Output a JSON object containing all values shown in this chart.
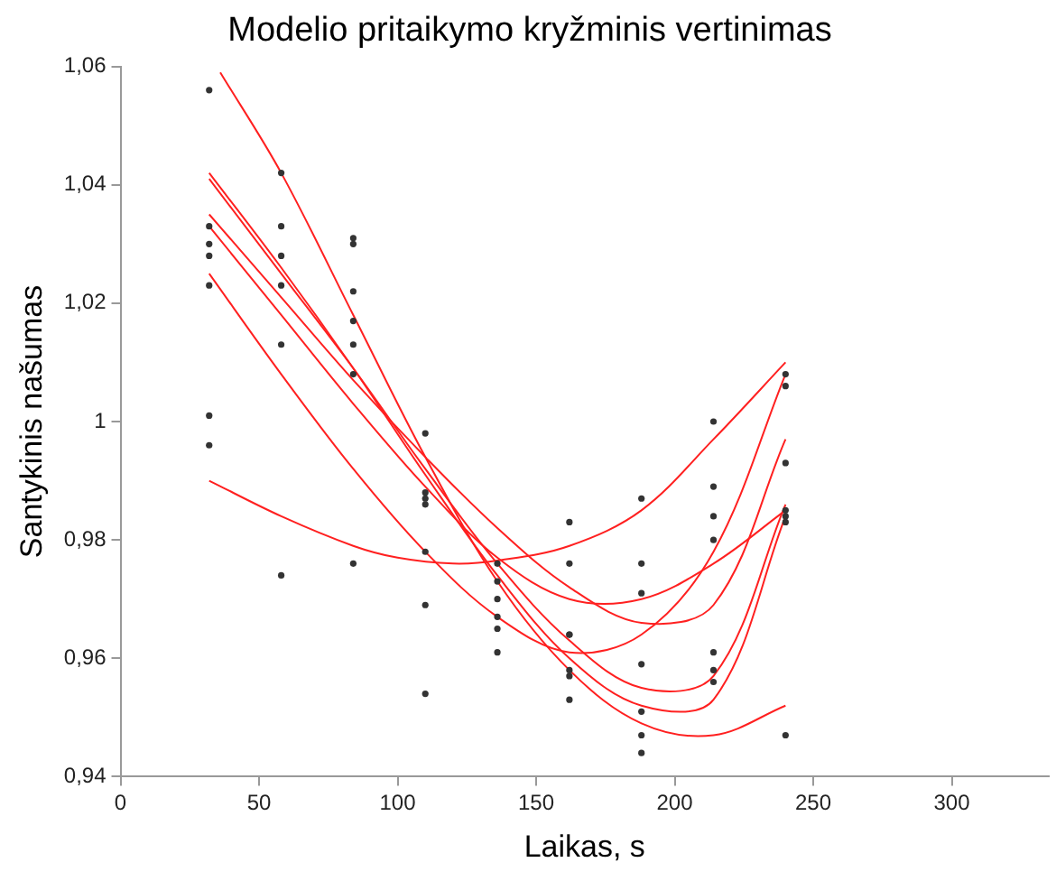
{
  "chart_data": {
    "type": "line",
    "title": "Modelio pritaikymo kryžminis vertinimas",
    "xlabel": "Laikas, s",
    "ylabel": "Santykinis našumas",
    "xlim": [
      0,
      335
    ],
    "xticks": [
      0,
      50,
      100,
      150,
      200,
      250,
      300
    ],
    "ylim": [
      0.94,
      1.06
    ],
    "yticks": [
      {
        "value": 0.94,
        "label": "0,94"
      },
      {
        "value": 0.96,
        "label": "0,96"
      },
      {
        "value": 0.98,
        "label": "0,98"
      },
      {
        "value": 1,
        "label": "1"
      },
      {
        "value": 1.02,
        "label": "1,02"
      },
      {
        "value": 1.04,
        "label": "1,04"
      },
      {
        "value": 1.06,
        "label": "1,06"
      }
    ],
    "grid": false,
    "legend": false,
    "series": [
      {
        "type": "scatter",
        "color": "#333333",
        "marker": "circle",
        "x": [
          32,
          32,
          32,
          32,
          32,
          32,
          32,
          58,
          58,
          58,
          58,
          58,
          58,
          84,
          84,
          84,
          84,
          84,
          84,
          84,
          110,
          110,
          110,
          110,
          110,
          110,
          110,
          136,
          136,
          136,
          136,
          136,
          136,
          162,
          162,
          162,
          162,
          162,
          162,
          162,
          188,
          188,
          188,
          188,
          188,
          188,
          188,
          214,
          214,
          214,
          214,
          214,
          214,
          214,
          240,
          240,
          240,
          240,
          240,
          240,
          240
        ],
        "values": [
          1.056,
          1.033,
          1.03,
          1.028,
          1.023,
          1.001,
          0.996,
          1.042,
          1.033,
          1.028,
          1.023,
          1.013,
          0.974,
          1.031,
          1.03,
          1.022,
          1.017,
          1.013,
          1.008,
          0.976,
          0.998,
          0.988,
          0.987,
          0.986,
          0.978,
          0.969,
          0.954,
          0.976,
          0.973,
          0.97,
          0.967,
          0.965,
          0.961,
          0.983,
          0.976,
          0.964,
          0.964,
          0.958,
          0.957,
          0.953,
          0.987,
          0.976,
          0.971,
          0.959,
          0.951,
          0.947,
          0.944,
          1.0,
          0.989,
          0.984,
          0.98,
          0.961,
          0.958,
          0.956,
          1.008,
          1.006,
          0.993,
          0.985,
          0.984,
          0.983,
          0.947
        ]
      },
      {
        "type": "line",
        "color": "#ff2020",
        "marker": "none",
        "x": [
          32,
          58,
          84,
          100,
          120,
          136,
          162,
          188,
          214,
          240
        ],
        "values": [
          0.99,
          0.984,
          0.979,
          0.977,
          0.976,
          0.9765,
          0.979,
          0.985,
          0.997,
          1.01
        ]
      },
      {
        "type": "line",
        "color": "#ff2020",
        "marker": "none",
        "x": [
          32,
          58,
          84,
          110,
          136,
          162,
          188,
          214,
          240
        ],
        "values": [
          1.025,
          1.008,
          0.992,
          0.978,
          0.967,
          0.961,
          0.964,
          0.978,
          1.008
        ]
      },
      {
        "type": "line",
        "color": "#ff2020",
        "marker": "none",
        "x": [
          32,
          58,
          84,
          110,
          136,
          162,
          188,
          214,
          240
        ],
        "values": [
          1.033,
          1.018,
          1.003,
          0.989,
          0.977,
          0.97,
          0.97,
          0.976,
          0.985
        ]
      },
      {
        "type": "line",
        "color": "#ff2020",
        "marker": "none",
        "x": [
          32,
          58,
          84,
          110,
          136,
          162,
          188,
          214,
          240
        ],
        "values": [
          1.035,
          1.021,
          1.007,
          0.994,
          0.982,
          0.972,
          0.966,
          0.969,
          0.997
        ]
      },
      {
        "type": "line",
        "color": "#ff2020",
        "marker": "none",
        "x": [
          32,
          58,
          84,
          110,
          136,
          162,
          188,
          214,
          240
        ],
        "values": [
          1.041,
          1.025,
          1.009,
          0.992,
          0.976,
          0.963,
          0.955,
          0.957,
          0.986
        ]
      },
      {
        "type": "line",
        "color": "#ff2020",
        "marker": "none",
        "x": [
          32,
          58,
          84,
          110,
          136,
          162,
          188,
          214,
          240
        ],
        "values": [
          1.042,
          1.026,
          1.009,
          0.991,
          0.974,
          0.96,
          0.952,
          0.953,
          0.984
        ]
      },
      {
        "type": "line",
        "color": "#ff2020",
        "marker": "none",
        "x": [
          36,
          58,
          84,
          110,
          136,
          162,
          188,
          214,
          240
        ],
        "values": [
          1.059,
          1.042,
          1.018,
          0.994,
          0.973,
          0.958,
          0.949,
          0.947,
          0.952
        ]
      }
    ]
  }
}
